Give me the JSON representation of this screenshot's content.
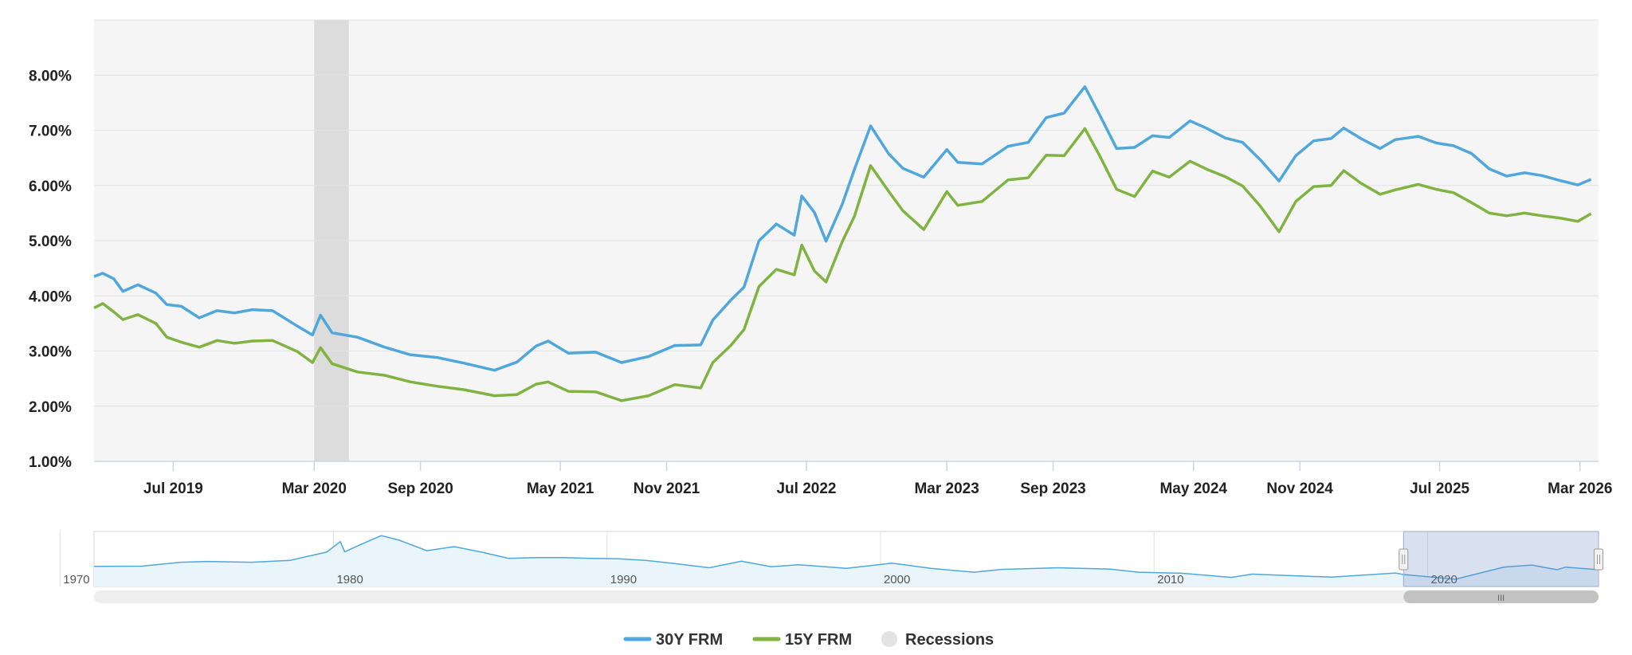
{
  "chart_data": {
    "type": "line",
    "title": "",
    "xlabel": "",
    "ylabel": "",
    "ylim": [
      1.0,
      9.0
    ],
    "yticks": [
      "1.00%",
      "2.00%",
      "3.00%",
      "4.00%",
      "5.00%",
      "6.00%",
      "7.00%",
      "8.00%"
    ],
    "xlim": [
      "2019-02-14",
      "2026-04-02"
    ],
    "xticks": [
      {
        "date": "2019-07-01",
        "label": "Jul 2019"
      },
      {
        "date": "2020-03-01",
        "label": "Mar 2020"
      },
      {
        "date": "2020-09-01",
        "label": "Sep 2020"
      },
      {
        "date": "2021-05-01",
        "label": "May 2021"
      },
      {
        "date": "2021-11-01",
        "label": "Nov 2021"
      },
      {
        "date": "2022-07-01",
        "label": "Jul 2022"
      },
      {
        "date": "2023-03-01",
        "label": "Mar 2023"
      },
      {
        "date": "2023-09-01",
        "label": "Sep 2023"
      },
      {
        "date": "2024-05-01",
        "label": "May 2024"
      },
      {
        "date": "2024-11-01",
        "label": "Nov 2024"
      },
      {
        "date": "2025-07-01",
        "label": "Jul 2025"
      },
      {
        "date": "2026-03-01",
        "label": "Mar 2026"
      }
    ],
    "recession_bands": [
      {
        "from": "2020-03-01",
        "to": "2020-04-30"
      }
    ],
    "grid": true,
    "legend_position": "bottom-center",
    "series": [
      {
        "name": "30Y FRM",
        "color": "#4fa7dc",
        "points": [
          [
            "2019-02-14",
            4.35
          ],
          [
            "2019-03-01",
            4.41
          ],
          [
            "2019-03-20",
            4.31
          ],
          [
            "2019-04-05",
            4.08
          ],
          [
            "2019-05-01",
            4.2
          ],
          [
            "2019-06-01",
            4.05
          ],
          [
            "2019-06-20",
            3.84
          ],
          [
            "2019-07-15",
            3.81
          ],
          [
            "2019-08-15",
            3.6
          ],
          [
            "2019-09-15",
            3.73
          ],
          [
            "2019-10-15",
            3.69
          ],
          [
            "2019-11-15",
            3.75
          ],
          [
            "2019-12-20",
            3.73
          ],
          [
            "2020-02-01",
            3.45
          ],
          [
            "2020-02-27",
            3.29
          ],
          [
            "2020-03-12",
            3.65
          ],
          [
            "2020-04-01",
            3.33
          ],
          [
            "2020-05-15",
            3.25
          ],
          [
            "2020-07-01",
            3.07
          ],
          [
            "2020-08-15",
            2.93
          ],
          [
            "2020-10-01",
            2.88
          ],
          [
            "2020-11-15",
            2.78
          ],
          [
            "2021-01-07",
            2.65
          ],
          [
            "2021-02-15",
            2.8
          ],
          [
            "2021-03-20",
            3.09
          ],
          [
            "2021-04-10",
            3.18
          ],
          [
            "2021-05-15",
            2.96
          ],
          [
            "2021-07-01",
            2.98
          ],
          [
            "2021-08-15",
            2.79
          ],
          [
            "2021-10-01",
            2.9
          ],
          [
            "2021-11-15",
            3.1
          ],
          [
            "2021-12-30",
            3.11
          ],
          [
            "2022-01-20",
            3.56
          ],
          [
            "2022-02-20",
            3.92
          ],
          [
            "2022-03-15",
            4.16
          ],
          [
            "2022-04-10",
            5.0
          ],
          [
            "2022-05-10",
            5.3
          ],
          [
            "2022-06-10",
            5.1
          ],
          [
            "2022-06-23",
            5.81
          ],
          [
            "2022-07-15",
            5.51
          ],
          [
            "2022-08-04",
            4.99
          ],
          [
            "2022-09-01",
            5.66
          ],
          [
            "2022-09-22",
            6.29
          ],
          [
            "2022-10-20",
            7.08
          ],
          [
            "2022-11-20",
            6.58
          ],
          [
            "2022-12-15",
            6.31
          ],
          [
            "2023-01-20",
            6.15
          ],
          [
            "2023-03-01",
            6.65
          ],
          [
            "2023-03-20",
            6.42
          ],
          [
            "2023-05-01",
            6.39
          ],
          [
            "2023-06-15",
            6.71
          ],
          [
            "2023-07-20",
            6.78
          ],
          [
            "2023-08-20",
            7.23
          ],
          [
            "2023-09-20",
            7.31
          ],
          [
            "2023-10-26",
            7.79
          ],
          [
            "2023-11-20",
            7.29
          ],
          [
            "2023-12-20",
            6.67
          ],
          [
            "2024-01-20",
            6.69
          ],
          [
            "2024-02-20",
            6.9
          ],
          [
            "2024-03-20",
            6.87
          ],
          [
            "2024-04-25",
            7.17
          ],
          [
            "2024-05-25",
            7.03
          ],
          [
            "2024-06-25",
            6.86
          ],
          [
            "2024-07-25",
            6.78
          ],
          [
            "2024-08-25",
            6.46
          ],
          [
            "2024-09-26",
            6.08
          ],
          [
            "2024-10-25",
            6.54
          ],
          [
            "2024-11-25",
            6.81
          ],
          [
            "2024-12-25",
            6.85
          ],
          [
            "2025-01-16",
            7.04
          ],
          [
            "2025-02-15",
            6.85
          ],
          [
            "2025-03-20",
            6.67
          ],
          [
            "2025-04-15",
            6.83
          ],
          [
            "2025-05-25",
            6.89
          ],
          [
            "2025-06-25",
            6.77
          ],
          [
            "2025-07-25",
            6.72
          ],
          [
            "2025-08-25",
            6.58
          ],
          [
            "2025-09-25",
            6.3
          ],
          [
            "2025-10-25",
            6.17
          ],
          [
            "2025-11-25",
            6.23
          ],
          [
            "2025-12-25",
            6.18
          ],
          [
            "2026-01-25",
            6.09
          ],
          [
            "2026-02-25",
            6.01
          ],
          [
            "2026-03-20",
            6.11
          ]
        ]
      },
      {
        "name": "15Y FRM",
        "color": "#80b342",
        "points": [
          [
            "2019-02-14",
            3.78
          ],
          [
            "2019-03-01",
            3.86
          ],
          [
            "2019-03-20",
            3.71
          ],
          [
            "2019-04-05",
            3.57
          ],
          [
            "2019-05-01",
            3.66
          ],
          [
            "2019-06-01",
            3.5
          ],
          [
            "2019-06-20",
            3.25
          ],
          [
            "2019-07-15",
            3.16
          ],
          [
            "2019-08-15",
            3.07
          ],
          [
            "2019-09-15",
            3.19
          ],
          [
            "2019-10-15",
            3.14
          ],
          [
            "2019-11-15",
            3.18
          ],
          [
            "2019-12-20",
            3.19
          ],
          [
            "2020-02-01",
            2.99
          ],
          [
            "2020-02-27",
            2.79
          ],
          [
            "2020-03-12",
            3.06
          ],
          [
            "2020-04-01",
            2.77
          ],
          [
            "2020-05-15",
            2.62
          ],
          [
            "2020-07-01",
            2.56
          ],
          [
            "2020-08-15",
            2.44
          ],
          [
            "2020-10-01",
            2.36
          ],
          [
            "2020-11-15",
            2.3
          ],
          [
            "2021-01-07",
            2.19
          ],
          [
            "2021-02-15",
            2.21
          ],
          [
            "2021-03-20",
            2.4
          ],
          [
            "2021-04-10",
            2.44
          ],
          [
            "2021-05-15",
            2.27
          ],
          [
            "2021-07-01",
            2.26
          ],
          [
            "2021-08-15",
            2.1
          ],
          [
            "2021-10-01",
            2.19
          ],
          [
            "2021-11-15",
            2.39
          ],
          [
            "2021-12-30",
            2.33
          ],
          [
            "2022-01-20",
            2.79
          ],
          [
            "2022-02-20",
            3.1
          ],
          [
            "2022-03-15",
            3.39
          ],
          [
            "2022-04-10",
            4.17
          ],
          [
            "2022-05-10",
            4.48
          ],
          [
            "2022-06-10",
            4.38
          ],
          [
            "2022-06-23",
            4.92
          ],
          [
            "2022-07-15",
            4.45
          ],
          [
            "2022-08-04",
            4.25
          ],
          [
            "2022-09-01",
            4.98
          ],
          [
            "2022-09-22",
            5.44
          ],
          [
            "2022-10-20",
            6.36
          ],
          [
            "2022-11-20",
            5.9
          ],
          [
            "2022-12-15",
            5.54
          ],
          [
            "2023-01-20",
            5.2
          ],
          [
            "2023-03-01",
            5.89
          ],
          [
            "2023-03-20",
            5.64
          ],
          [
            "2023-05-01",
            5.71
          ],
          [
            "2023-06-15",
            6.1
          ],
          [
            "2023-07-20",
            6.14
          ],
          [
            "2023-08-20",
            6.55
          ],
          [
            "2023-09-20",
            6.54
          ],
          [
            "2023-10-26",
            7.03
          ],
          [
            "2023-11-20",
            6.55
          ],
          [
            "2023-12-20",
            5.93
          ],
          [
            "2024-01-20",
            5.8
          ],
          [
            "2024-02-20",
            6.26
          ],
          [
            "2024-03-20",
            6.15
          ],
          [
            "2024-04-25",
            6.44
          ],
          [
            "2024-05-25",
            6.29
          ],
          [
            "2024-06-25",
            6.16
          ],
          [
            "2024-07-25",
            5.99
          ],
          [
            "2024-08-25",
            5.62
          ],
          [
            "2024-09-26",
            5.16
          ],
          [
            "2024-10-25",
            5.71
          ],
          [
            "2024-11-25",
            5.98
          ],
          [
            "2024-12-25",
            6.0
          ],
          [
            "2025-01-16",
            6.27
          ],
          [
            "2025-02-15",
            6.04
          ],
          [
            "2025-03-20",
            5.84
          ],
          [
            "2025-04-15",
            5.92
          ],
          [
            "2025-05-25",
            6.02
          ],
          [
            "2025-06-25",
            5.93
          ],
          [
            "2025-07-25",
            5.87
          ],
          [
            "2025-08-25",
            5.69
          ],
          [
            "2025-09-25",
            5.5
          ],
          [
            "2025-10-25",
            5.45
          ],
          [
            "2025-11-25",
            5.5
          ],
          [
            "2025-12-25",
            5.45
          ],
          [
            "2026-01-25",
            5.41
          ],
          [
            "2026-02-25",
            5.35
          ],
          [
            "2026-03-20",
            5.49
          ]
        ]
      }
    ],
    "navigator": {
      "labels": [
        "1970",
        "1980",
        "1990",
        "2000",
        "2010",
        "2020"
      ],
      "range": [
        "1971-04-01",
        "2026-04-02"
      ],
      "ylim": [
        0,
        20
      ],
      "selection": [
        "2019-02-14",
        "2026-04-02"
      ],
      "series_points": [
        [
          "1971-04-01",
          7.3
        ],
        [
          "1973-01-01",
          7.4
        ],
        [
          "1974-06-01",
          8.8
        ],
        [
          "1975-06-01",
          9.1
        ],
        [
          "1977-01-01",
          8.8
        ],
        [
          "1978-06-01",
          9.5
        ],
        [
          "1979-10-01",
          12.5
        ],
        [
          "1980-04-01",
          16.3
        ],
        [
          "1980-06-01",
          12.6
        ],
        [
          "1980-12-01",
          14.9
        ],
        [
          "1981-10-01",
          18.5
        ],
        [
          "1982-06-01",
          16.8
        ],
        [
          "1983-06-01",
          13.0
        ],
        [
          "1984-06-01",
          14.5
        ],
        [
          "1985-06-01",
          12.5
        ],
        [
          "1986-06-01",
          10.2
        ],
        [
          "1987-06-01",
          10.5
        ],
        [
          "1988-06-01",
          10.5
        ],
        [
          "1989-06-01",
          10.2
        ],
        [
          "1990-06-01",
          10.1
        ],
        [
          "1991-06-01",
          9.5
        ],
        [
          "1992-06-01",
          8.4
        ],
        [
          "1993-10-01",
          6.8
        ],
        [
          "1994-12-01",
          9.2
        ],
        [
          "1996-01-01",
          7.2
        ],
        [
          "1997-01-01",
          7.9
        ],
        [
          "1998-10-01",
          6.6
        ],
        [
          "2000-06-01",
          8.5
        ],
        [
          "2001-11-01",
          6.6
        ],
        [
          "2003-06-01",
          5.2
        ],
        [
          "2004-06-01",
          6.2
        ],
        [
          "2006-07-01",
          6.8
        ],
        [
          "2008-06-01",
          6.3
        ],
        [
          "2009-06-01",
          5.2
        ],
        [
          "2011-01-01",
          4.8
        ],
        [
          "2012-11-01",
          3.3
        ],
        [
          "2013-08-01",
          4.5
        ],
        [
          "2016-07-01",
          3.4
        ],
        [
          "2018-11-01",
          4.9
        ],
        [
          "2019-02-14",
          4.35
        ],
        [
          "2021-01-07",
          2.65
        ],
        [
          "2022-10-20",
          7.08
        ],
        [
          "2023-10-26",
          7.79
        ],
        [
          "2024-09-26",
          6.08
        ],
        [
          "2025-01-16",
          7.04
        ],
        [
          "2026-03-20",
          6.11
        ]
      ]
    },
    "scrollbar_grip": "III"
  }
}
